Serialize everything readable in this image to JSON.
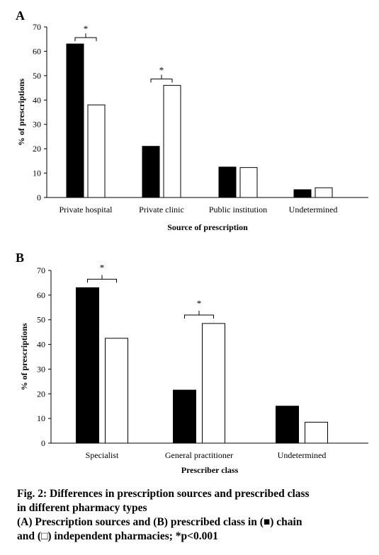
{
  "chart_data": [
    {
      "panel": "A",
      "type": "bar",
      "categories": [
        "Private hospital",
        "Private clinic",
        "Public institution",
        "Undetermined"
      ],
      "series": [
        {
          "color": "#000000",
          "values": [
            63,
            21,
            12.5,
            3.2
          ]
        },
        {
          "color": "#ffffff",
          "values": [
            38,
            46,
            12.3,
            4
          ]
        }
      ],
      "xlabel": "Source of prescription",
      "ylabel": "% of prescriptions",
      "ylim": [
        0,
        70
      ],
      "yticks": [
        0,
        10,
        20,
        30,
        40,
        50,
        60,
        70
      ],
      "grid": false,
      "annotations": [
        {
          "category_index": 0,
          "text": "*"
        },
        {
          "category_index": 1,
          "text": "*"
        }
      ]
    },
    {
      "panel": "B",
      "type": "bar",
      "categories": [
        "Specialist",
        "General practitioner",
        "Undetermined"
      ],
      "series": [
        {
          "color": "#000000",
          "values": [
            63,
            21.5,
            15
          ]
        },
        {
          "color": "#ffffff",
          "values": [
            42.5,
            48.5,
            8.5
          ]
        }
      ],
      "xlabel": "Prescriber class",
      "ylabel": "% of prescriptions",
      "ylim": [
        0,
        70
      ],
      "yticks": [
        0,
        10,
        20,
        30,
        40,
        50,
        60,
        70
      ],
      "grid": false,
      "annotations": [
        {
          "category_index": 0,
          "text": "*"
        },
        {
          "category_index": 1,
          "text": "*"
        }
      ]
    }
  ],
  "caption": {
    "line1": "Fig. 2: Differences in prescription sources and prescribed class",
    "line2": "in different pharmacy types",
    "line3": "(A) Prescription sources and (B) prescribed class in (■) chain",
    "line4": "and (□) independent pharmacies; *p<0.001"
  }
}
